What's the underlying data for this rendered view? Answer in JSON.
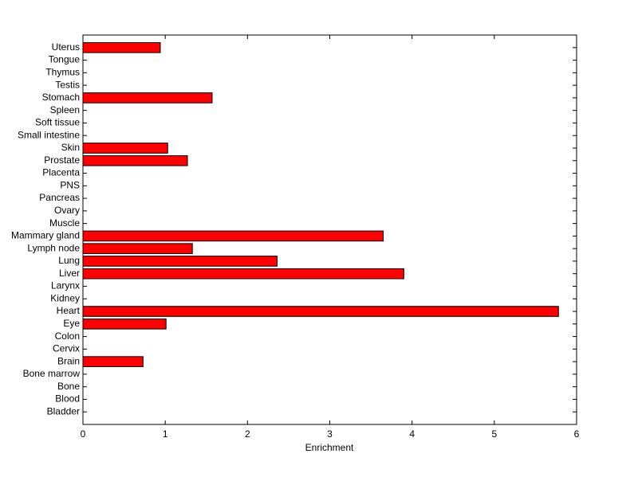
{
  "chart_data": {
    "type": "barh",
    "xlabel": "Enrichment",
    "categories": [
      "Bladder",
      "Blood",
      "Bone",
      "Bone marrow",
      "Brain",
      "Cervix",
      "Colon",
      "Eye",
      "Heart",
      "Kidney",
      "Larynx",
      "Liver",
      "Lung",
      "Lymph node",
      "Mammary gland",
      "Muscle",
      "Ovary",
      "Pancreas",
      "PNS",
      "Placenta",
      "Prostate",
      "Skin",
      "Small intestine",
      "Soft tissue",
      "Spleen",
      "Stomach",
      "Testis",
      "Thymus",
      "Tongue",
      "Uterus"
    ],
    "values": [
      0,
      0,
      0,
      0,
      0.73,
      0,
      0,
      1.01,
      5.78,
      0,
      0,
      3.9,
      2.36,
      1.33,
      3.65,
      0,
      0,
      0,
      0,
      0,
      1.27,
      1.03,
      0,
      0,
      0,
      1.57,
      0,
      0,
      0,
      0.94
    ],
    "color": "#ff0000",
    "xlim": [
      0,
      6
    ],
    "xticks": [
      0,
      1,
      2,
      3,
      4,
      5,
      6
    ]
  }
}
